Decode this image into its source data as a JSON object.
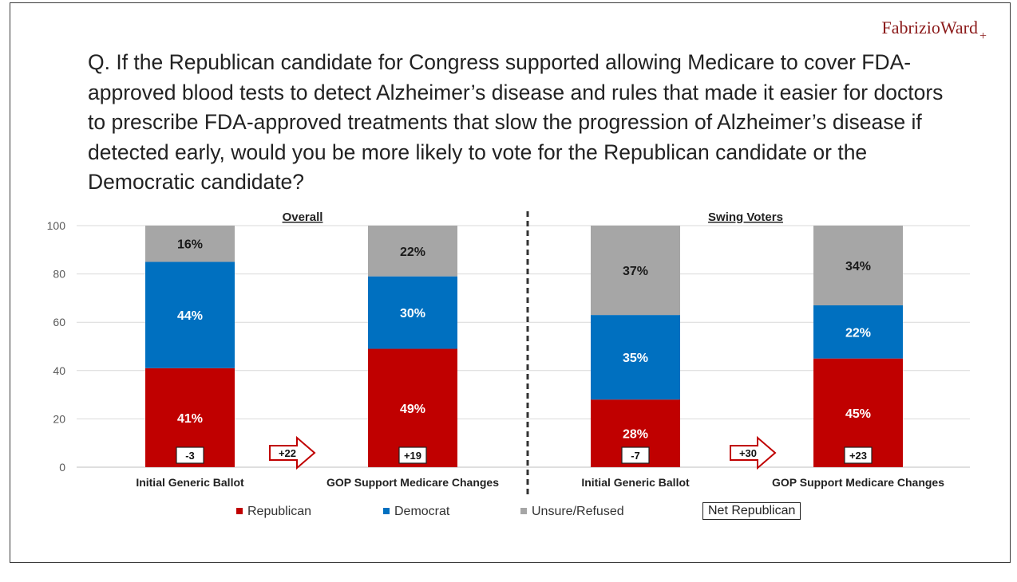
{
  "brand": {
    "name": "FabrizioWard",
    "plus": "+"
  },
  "question": "Q. If the Republican candidate for Congress supported allowing Medicare to cover FDA-approved blood tests to detect Alzheimer’s disease and rules that made it easier for doctors to prescribe FDA-approved treatments that slow the progression of Alzheimer’s disease if detected early, would you be more likely to vote for the Republican candidate or the Democratic candidate?",
  "legend": {
    "republican": "Republican",
    "democrat": "Democrat",
    "unsure": "Unsure/Refused",
    "net": "Net Republican"
  },
  "colors": {
    "republican": "#c00000",
    "democrat": "#0070c0",
    "unsure": "#a6a6a6"
  },
  "chart_data": {
    "type": "bar",
    "stacked": true,
    "ylim": [
      0,
      100
    ],
    "yticks": [
      0,
      20,
      40,
      60,
      80,
      100
    ],
    "groups": [
      {
        "title": "Overall",
        "bars": [
          {
            "label": "Initial Generic Ballot",
            "republican": 41,
            "democrat": 44,
            "unsure": 16,
            "republican_label": "41%",
            "democrat_label": "44%",
            "unsure_label": "16%",
            "net": "-3"
          },
          {
            "label": "GOP Support Medicare Changes",
            "republican": 49,
            "democrat": 30,
            "unsure": 22,
            "republican_label": "49%",
            "democrat_label": "30%",
            "unsure_label": "22%",
            "net": "+19"
          }
        ],
        "shift": "+22"
      },
      {
        "title": "Swing Voters",
        "bars": [
          {
            "label": "Initial Generic Ballot",
            "republican": 28,
            "democrat": 35,
            "unsure": 37,
            "republican_label": "28%",
            "democrat_label": "35%",
            "unsure_label": "37%",
            "net": "-7"
          },
          {
            "label": "GOP Support Medicare Changes",
            "republican": 45,
            "democrat": 22,
            "unsure": 34,
            "republican_label": "45%",
            "democrat_label": "22%",
            "unsure_label": "34%",
            "net": "+23"
          }
        ],
        "shift": "+30"
      }
    ]
  }
}
